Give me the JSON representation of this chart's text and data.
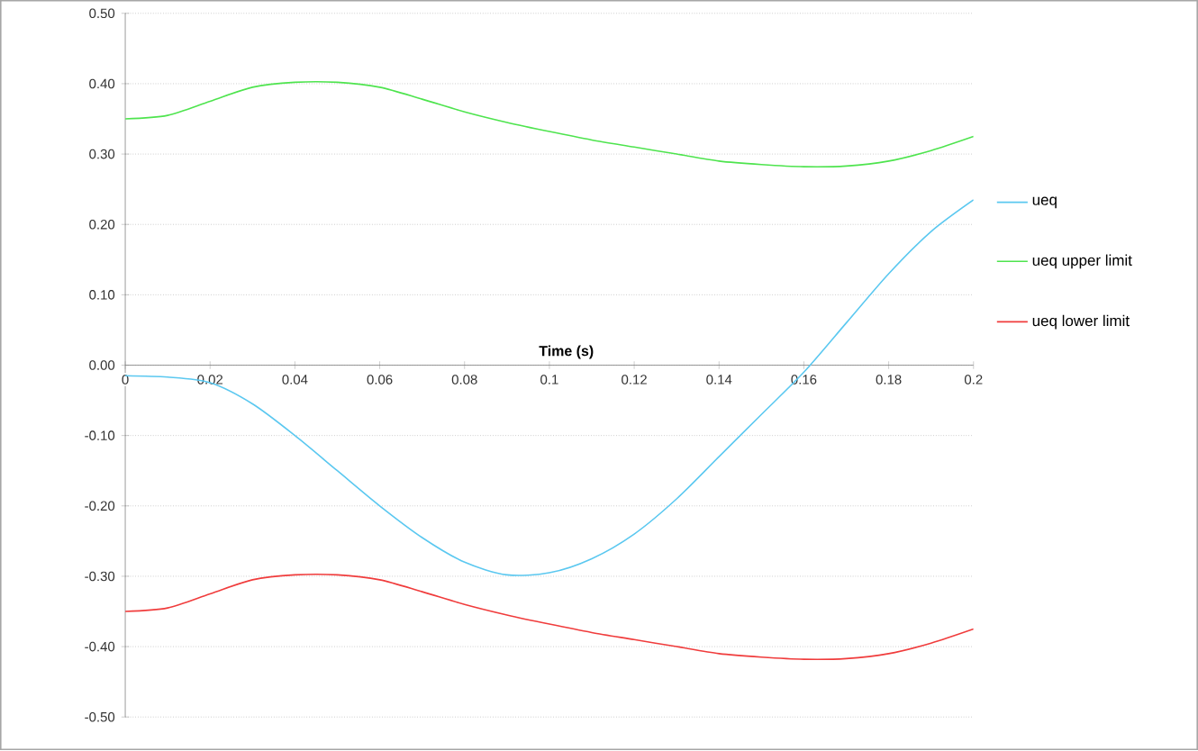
{
  "chart_data": {
    "type": "line",
    "xlabel": "Time (s)",
    "x": [
      0,
      0.01,
      0.02,
      0.03,
      0.04,
      0.05,
      0.06,
      0.07,
      0.08,
      0.09,
      0.1,
      0.11,
      0.12,
      0.13,
      0.14,
      0.15,
      0.16,
      0.17,
      0.18,
      0.19,
      0.2
    ],
    "series": [
      {
        "name": "ueq",
        "color": "#5bc8f0",
        "values": [
          -0.015,
          -0.017,
          -0.025,
          -0.055,
          -0.1,
          -0.15,
          -0.2,
          -0.245,
          -0.28,
          -0.298,
          -0.295,
          -0.275,
          -0.24,
          -0.19,
          -0.13,
          -0.07,
          -0.01,
          0.06,
          0.13,
          0.19,
          0.235
        ]
      },
      {
        "name": "ueq upper limit",
        "color": "#4ee44e",
        "values": [
          0.35,
          0.355,
          0.375,
          0.395,
          0.402,
          0.402,
          0.395,
          0.378,
          0.36,
          0.345,
          0.332,
          0.32,
          0.31,
          0.3,
          0.29,
          0.285,
          0.282,
          0.283,
          0.29,
          0.305,
          0.325
        ]
      },
      {
        "name": "ueq lower limit",
        "color": "#f03c3c",
        "values": [
          -0.35,
          -0.345,
          -0.325,
          -0.305,
          -0.298,
          -0.298,
          -0.305,
          -0.322,
          -0.34,
          -0.355,
          -0.368,
          -0.38,
          -0.39,
          -0.4,
          -0.41,
          -0.415,
          -0.418,
          -0.417,
          -0.41,
          -0.395,
          -0.375
        ]
      }
    ],
    "xlim": [
      0,
      0.2
    ],
    "xticks": [
      0,
      0.02,
      0.04,
      0.06,
      0.08,
      0.1,
      0.12,
      0.14,
      0.16,
      0.18,
      0.2
    ],
    "ylim": [
      -0.5,
      0.5
    ],
    "yticks": [
      {
        "value": -0.5,
        "label": "-0.50"
      },
      {
        "value": -0.4,
        "label": "-0.40"
      },
      {
        "value": -0.3,
        "label": "-0.30"
      },
      {
        "value": -0.2,
        "label": "-0.20"
      },
      {
        "value": -0.1,
        "label": "-0.10"
      },
      {
        "value": 0,
        "label": "0.00"
      },
      {
        "value": 0.1,
        "label": "0.10"
      },
      {
        "value": 0.2,
        "label": "0.20"
      },
      {
        "value": 0.3,
        "label": "0.30"
      },
      {
        "value": 0.4,
        "label": "0.40"
      },
      {
        "value": 0.5,
        "label": "0.50"
      }
    ],
    "grid": "y",
    "legend": "right",
    "marker": "none",
    "line_style": "solid"
  }
}
